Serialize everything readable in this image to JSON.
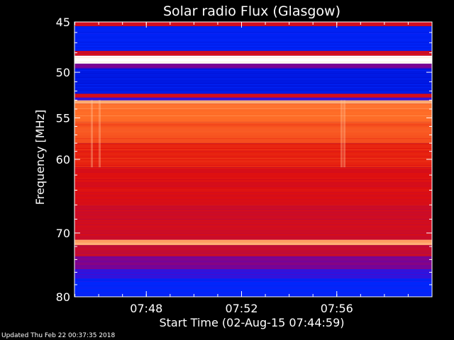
{
  "chart_data": {
    "type": "heatmap",
    "title": "Solar radio Flux (Glasgow)",
    "xlabel": "Start Time (02-Aug-15 07:44:59)",
    "ylabel": "Frequency [MHz]",
    "x_ticks": [
      "07:48",
      "07:52",
      "07:56"
    ],
    "y_ticks": [
      45,
      50,
      55,
      60,
      70,
      80
    ],
    "ylim": [
      80,
      45
    ],
    "time_range": [
      "07:44:59",
      "08:00:00"
    ],
    "y_scale": "log",
    "grid": false,
    "colormap": "blue-red-white",
    "bands": [
      {
        "from": 45.0,
        "to": 45.4,
        "level": 0.55
      },
      {
        "from": 45.4,
        "to": 47.8,
        "level": 0.12
      },
      {
        "from": 47.8,
        "to": 48.3,
        "level": 0.55
      },
      {
        "from": 48.3,
        "to": 49.1,
        "level": 1.0
      },
      {
        "from": 49.1,
        "to": 49.6,
        "level": 0.35
      },
      {
        "from": 49.6,
        "to": 52.3,
        "level": 0.08
      },
      {
        "from": 52.3,
        "to": 52.7,
        "level": 0.55
      },
      {
        "from": 52.7,
        "to": 53.0,
        "level": 0.25
      },
      {
        "from": 53.0,
        "to": 53.4,
        "level": 0.9
      },
      {
        "from": 53.4,
        "to": 55.5,
        "level": 0.8
      },
      {
        "from": 55.5,
        "to": 58.0,
        "level": 0.74
      },
      {
        "from": 58.0,
        "to": 61.0,
        "level": 0.64
      },
      {
        "from": 61.0,
        "to": 66.0,
        "level": 0.58
      },
      {
        "from": 66.0,
        "to": 71.0,
        "level": 0.54
      },
      {
        "from": 71.0,
        "to": 71.8,
        "level": 0.88
      },
      {
        "from": 71.8,
        "to": 73.5,
        "level": 0.5
      },
      {
        "from": 73.5,
        "to": 75.5,
        "level": 0.35
      },
      {
        "from": 75.5,
        "to": 77.0,
        "level": 0.22
      },
      {
        "from": 77.0,
        "to": 80.0,
        "level": 0.14
      }
    ],
    "colors": {
      "background": "#000000",
      "text": "#ffffff",
      "low": "#0018ff",
      "mid": "#e0100a",
      "high": "#ffffff"
    }
  },
  "footer": {
    "text": "Updated Thu Feb 22 00:37:35 2018"
  }
}
